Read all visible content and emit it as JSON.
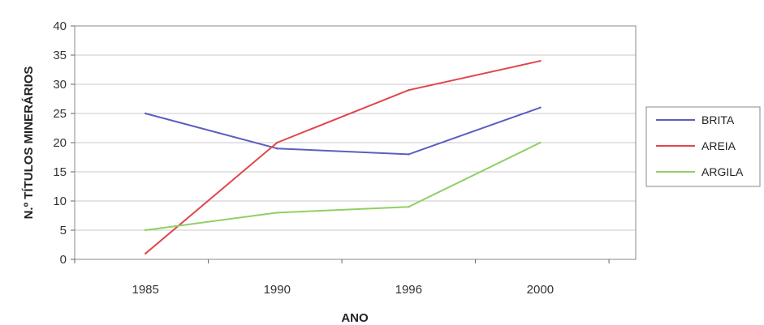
{
  "chart_data": {
    "type": "line",
    "categories": [
      "1985",
      "1990",
      "1996",
      "2000"
    ],
    "series": [
      {
        "name": "BRITA",
        "values": [
          25,
          19,
          18,
          26
        ],
        "color": "#5a5fc0"
      },
      {
        "name": "AREIA",
        "values": [
          1,
          20,
          29,
          34
        ],
        "color": "#e0474c"
      },
      {
        "name": "ARGILA",
        "values": [
          5,
          8,
          9,
          20
        ],
        "color": "#8fd065"
      }
    ],
    "xlabel": "ANO",
    "ylabel": "N.º TÍTULOS MINERÁRIOS",
    "ylim": [
      0,
      40
    ],
    "yticks": [
      0,
      5,
      10,
      15,
      20,
      25,
      30,
      35,
      40
    ],
    "grid": true,
    "legend_position": "right"
  }
}
